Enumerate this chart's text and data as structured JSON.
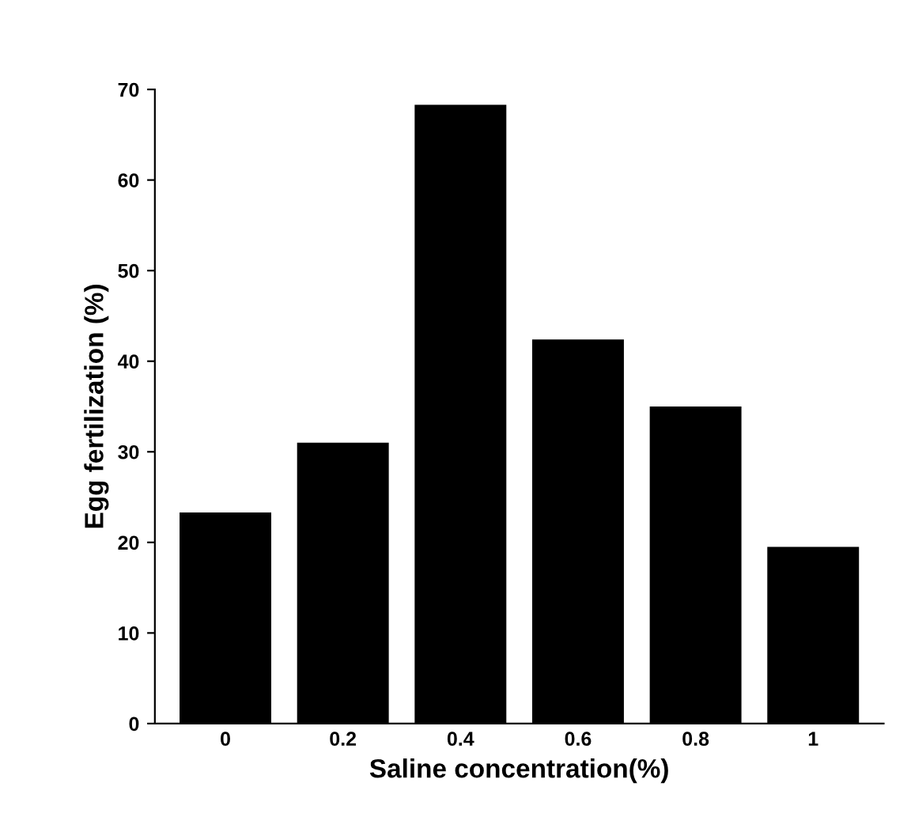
{
  "chart_data": {
    "type": "bar",
    "xlabel": "Saline concentration(%)",
    "ylabel": "Egg fertilization (%)",
    "categories": [
      "0",
      "0.2",
      "0.4",
      "0.6",
      "0.8",
      "1"
    ],
    "values": [
      23.3,
      31.0,
      68.3,
      42.4,
      35.0,
      19.5
    ],
    "color": "#000000",
    "ylim": [
      0,
      70
    ],
    "yticks": [
      0,
      10,
      20,
      30,
      40,
      50,
      60,
      70
    ],
    "grid": false
  }
}
